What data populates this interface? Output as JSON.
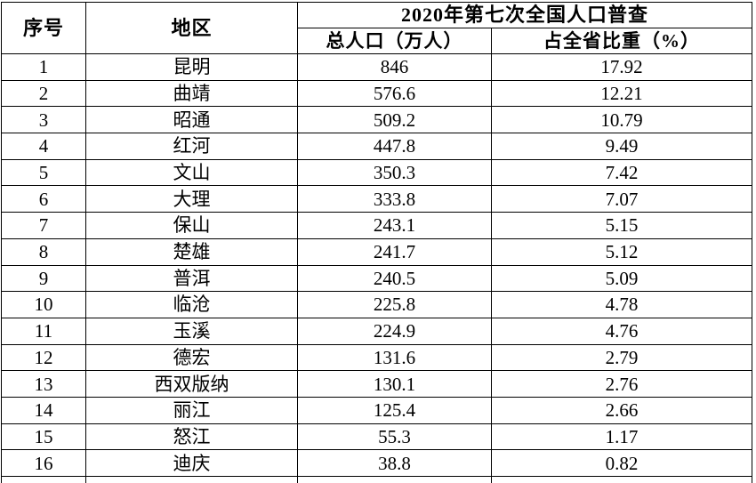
{
  "table": {
    "headers": {
      "no": "序号",
      "region": "地区",
      "census_title": "2020年第七次全国人口普查",
      "population": "总人口（万人）",
      "share": "占全省比重（%）"
    },
    "rows": [
      {
        "no": "1",
        "region": "昆明",
        "population": "846",
        "share": "17.92"
      },
      {
        "no": "2",
        "region": "曲靖",
        "population": "576.6",
        "share": "12.21"
      },
      {
        "no": "3",
        "region": "昭通",
        "population": "509.2",
        "share": "10.79"
      },
      {
        "no": "4",
        "region": "红河",
        "population": "447.8",
        "share": "9.49"
      },
      {
        "no": "5",
        "region": "文山",
        "population": "350.3",
        "share": "7.42"
      },
      {
        "no": "6",
        "region": "大理",
        "population": "333.8",
        "share": "7.07"
      },
      {
        "no": "7",
        "region": "保山",
        "population": "243.1",
        "share": "5.15"
      },
      {
        "no": "8",
        "region": "楚雄",
        "population": "241.7",
        "share": "5.12"
      },
      {
        "no": "9",
        "region": "普洱",
        "population": "240.5",
        "share": "5.09"
      },
      {
        "no": "10",
        "region": "临沧",
        "population": "225.8",
        "share": "4.78"
      },
      {
        "no": "11",
        "region": "玉溪",
        "population": "224.9",
        "share": "4.76"
      },
      {
        "no": "12",
        "region": "德宏",
        "population": "131.6",
        "share": "2.79"
      },
      {
        "no": "13",
        "region": "西双版纳",
        "population": "130.1",
        "share": "2.76"
      },
      {
        "no": "14",
        "region": "丽江",
        "population": "125.4",
        "share": "2.66"
      },
      {
        "no": "15",
        "region": "怒江",
        "population": "55.3",
        "share": "1.17"
      },
      {
        "no": "16",
        "region": "迪庆",
        "population": "38.8",
        "share": "0.82"
      }
    ]
  },
  "colors": {
    "border": "#000000",
    "text": "#000000",
    "background": "#ffffff"
  }
}
